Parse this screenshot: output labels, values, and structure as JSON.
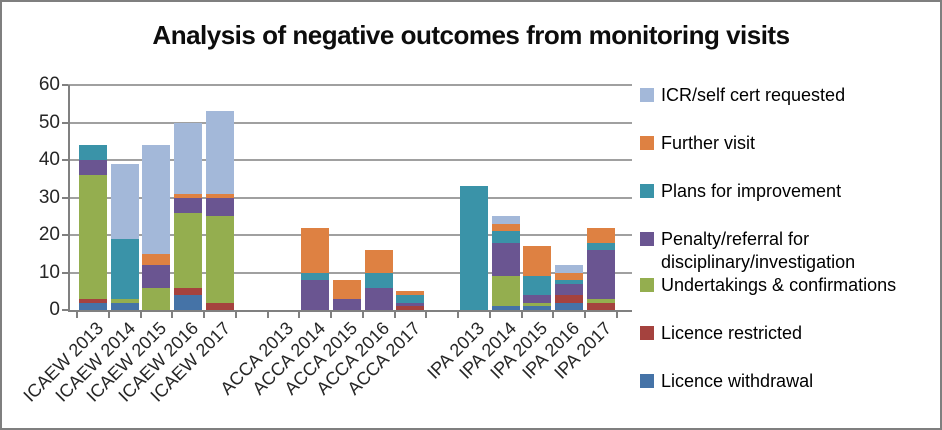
{
  "title": "Analysis of negative outcomes from monitoring visits",
  "chart_data": {
    "type": "bar",
    "stacked": true,
    "title": "Analysis of negative outcomes from monitoring visits",
    "categories": [
      "ICAEW 2013",
      "ICAEW 2014",
      "ICAEW 2015",
      "ICAEW 2016",
      "ICAEW 2017",
      "ACCA 2013",
      "ACCA 2014",
      "ACCA 2015",
      "ACCA 2016",
      "ACCA 2017",
      "IPA 2013",
      "IPA 2014",
      "IPA 2015",
      "IPA 2016",
      "IPA 2017"
    ],
    "category_groups": [
      "ICAEW",
      "ACCA",
      "IPA"
    ],
    "series": [
      {
        "name": "Licence withdrawal",
        "color": "#4573a7",
        "values": [
          2,
          2,
          0,
          4,
          0,
          0,
          0,
          0,
          0,
          0,
          0,
          1,
          1,
          2,
          0
        ]
      },
      {
        "name": "Licence restricted",
        "color": "#a5423e",
        "values": [
          1,
          0,
          0,
          2,
          2,
          0,
          0,
          0,
          0,
          1,
          0,
          0,
          0,
          2,
          2
        ]
      },
      {
        "name": "Undertakings & confirmations",
        "color": "#94ae4f",
        "values": [
          33,
          1,
          6,
          20,
          23,
          0,
          0,
          0,
          0,
          0,
          0,
          8,
          1,
          0,
          1
        ]
      },
      {
        "name": "Penalty/referral for disciplinary/investigation",
        "color": "#6a5591",
        "values": [
          4,
          0,
          6,
          4,
          5,
          0,
          8,
          3,
          6,
          1,
          0,
          9,
          2,
          3,
          13
        ]
      },
      {
        "name": "Plans for improvement",
        "color": "#3a93a8",
        "values": [
          4,
          16,
          0,
          0,
          0,
          0,
          2,
          0,
          4,
          2,
          33,
          3,
          5,
          1,
          2
        ]
      },
      {
        "name": "Further visit",
        "color": "#de8142",
        "values": [
          0,
          0,
          3,
          1,
          1,
          0,
          12,
          5,
          6,
          1,
          0,
          2,
          8,
          2,
          4
        ]
      },
      {
        "name": "ICR/self cert requested",
        "color": "#a3b8d9",
        "values": [
          0,
          20,
          29,
          19,
          22,
          0,
          0,
          0,
          0,
          0,
          0,
          2,
          0,
          2,
          0
        ]
      }
    ],
    "totals": [
      44,
      39,
      44,
      50,
      53,
      0,
      22,
      8,
      16,
      5,
      33,
      25,
      17,
      12,
      22
    ],
    "legend_order_top_to_bottom": [
      "ICR/self cert requested",
      "Further visit",
      "Plans for improvement",
      "Penalty/referral for disciplinary/investigation",
      "Undertakings & confirmations",
      "Licence restricted",
      "Licence withdrawal"
    ],
    "legend_position": "right",
    "grid": true,
    "xlabel": "",
    "ylabel": "",
    "ylim": [
      0,
      60
    ],
    "yticks": [
      0,
      10,
      20,
      30,
      40,
      50,
      60
    ]
  }
}
